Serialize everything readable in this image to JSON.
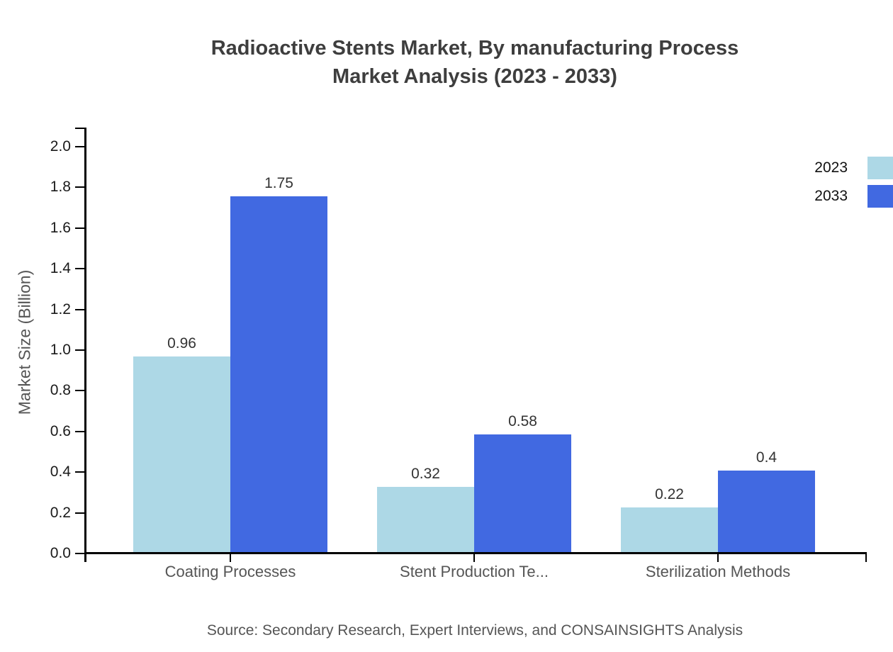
{
  "title": {
    "line1": "Radioactive Stents Market, By manufacturing Process",
    "line2": "Market Analysis (2023 - 2033)"
  },
  "source_note": "Source: Secondary Research, Expert Interviews, and CONSAINSIGHTS Analysis",
  "colors": {
    "series_2023": "#ADD8E6",
    "series_2033": "#4169E1",
    "axis": "#000000",
    "title_text": "#3E3E3E",
    "muted_text": "#555555",
    "value_label_text": "#333333"
  },
  "legend": {
    "items": [
      {
        "label": "2023",
        "color": "#ADD8E6"
      },
      {
        "label": "2033",
        "color": "#4169E1"
      }
    ]
  },
  "chart_data": {
    "type": "bar",
    "title": "Radioactive Stents Market, By manufacturing Process Market Analysis (2023 - 2033)",
    "categories": [
      "Coating Processes",
      "Stent Production Te...",
      "Sterilization Methods"
    ],
    "series": [
      {
        "name": "2023",
        "color": "#ADD8E6",
        "values": [
          0.96,
          0.32,
          0.22
        ]
      },
      {
        "name": "2033",
        "color": "#4169E1",
        "values": [
          1.75,
          0.58,
          0.4
        ]
      }
    ],
    "xlabel": "",
    "ylabel": "Market Size (Billion)",
    "ylim": [
      0,
      2.0
    ],
    "ytick_step": 0.2,
    "ytick_labels": [
      "0.0",
      "0.2",
      "0.4",
      "0.6",
      "0.8",
      "1.0",
      "1.2",
      "1.4",
      "1.6",
      "1.8",
      "2.0"
    ],
    "grid": false,
    "legend_position": "top-right",
    "bar_value_labels_shown": true
  }
}
